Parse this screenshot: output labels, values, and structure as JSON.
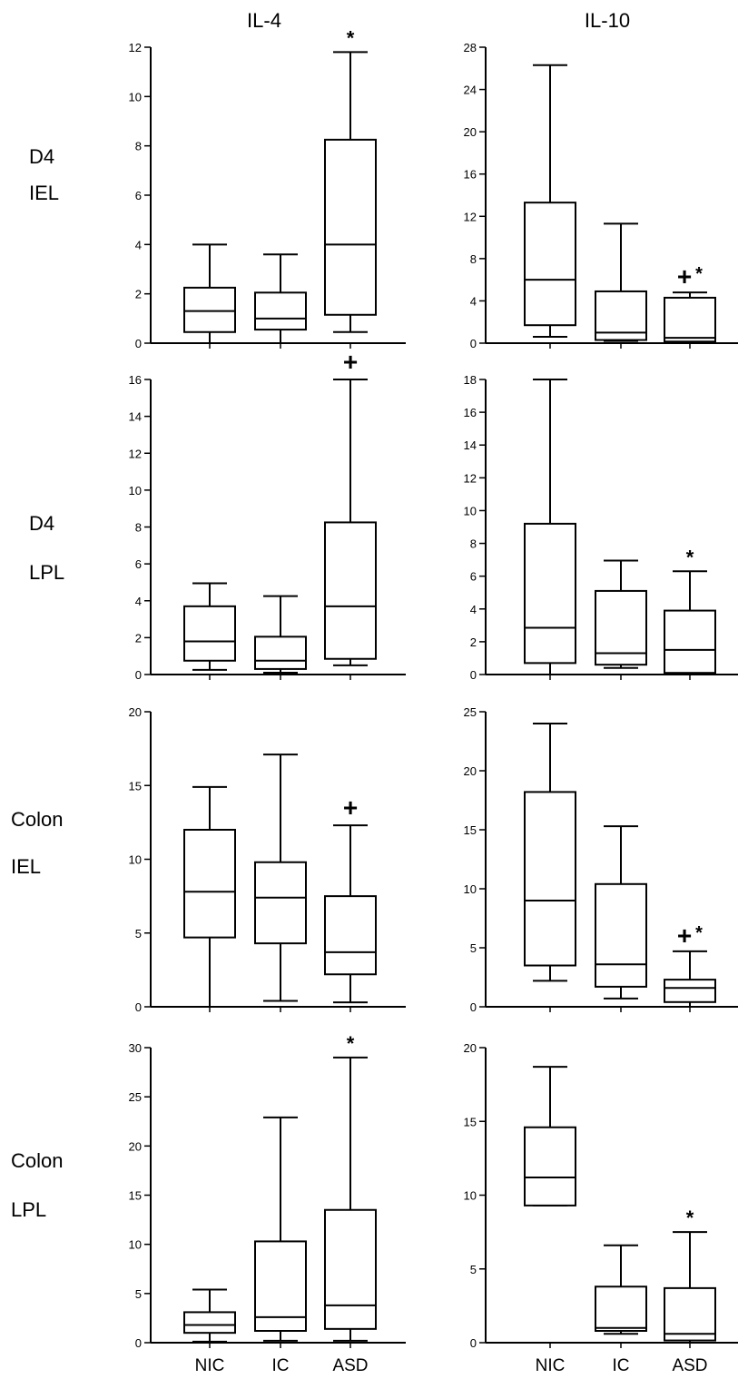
{
  "column_titles": [
    "IL-4",
    "IL-10"
  ],
  "row_labels": [
    {
      "line1": "D4",
      "line2": "IEL"
    },
    {
      "line1": "D4",
      "line2": "LPL"
    },
    {
      "line1": "Colon",
      "line2": "IEL"
    },
    {
      "line1": "Colon",
      "line2": "LPL"
    }
  ],
  "chart_data": [
    {
      "type": "box",
      "column_title": "IL-4",
      "row_label": "D4 IEL",
      "categories": [
        "NIC",
        "IC",
        "ASD"
      ],
      "ylim": [
        0,
        12
      ],
      "yticks": [
        0,
        2,
        4,
        6,
        8,
        10,
        12
      ],
      "boxes": [
        {
          "min": 0,
          "q1": 0.45,
          "median": 1.3,
          "q3": 2.25,
          "max": 4.0
        },
        {
          "min": 0,
          "q1": 0.55,
          "median": 1.0,
          "q3": 2.05,
          "max": 3.6
        },
        {
          "min": 0.45,
          "q1": 1.15,
          "median": 4.0,
          "q3": 8.25,
          "max": 11.8
        }
      ],
      "annotations": [
        {
          "category": "ASD",
          "text": "*"
        }
      ]
    },
    {
      "type": "box",
      "column_title": "IL-10",
      "row_label": "D4 IEL",
      "categories": [
        "NIC",
        "IC",
        "ASD"
      ],
      "ylim": [
        0,
        28
      ],
      "yticks": [
        0,
        4,
        8,
        12,
        16,
        20,
        24,
        28
      ],
      "boxes": [
        {
          "min": 0.6,
          "q1": 1.7,
          "median": 6.0,
          "q3": 13.3,
          "max": 26.3
        },
        {
          "min": 0.2,
          "q1": 0.3,
          "median": 1.0,
          "q3": 4.9,
          "max": 11.3
        },
        {
          "min": 0,
          "q1": 0.15,
          "median": 0.5,
          "q3": 4.3,
          "max": 4.8
        }
      ],
      "annotations": [
        {
          "category": "ASD",
          "text": "+*"
        }
      ]
    },
    {
      "type": "box",
      "column_title": "IL-4",
      "row_label": "D4 LPL",
      "categories": [
        "NIC",
        "IC",
        "ASD"
      ],
      "ylim": [
        0,
        16
      ],
      "yticks": [
        0,
        2,
        4,
        6,
        8,
        10,
        12,
        14,
        16
      ],
      "boxes": [
        {
          "min": 0.25,
          "q1": 0.75,
          "median": 1.8,
          "q3": 3.7,
          "max": 4.95
        },
        {
          "min": 0.1,
          "q1": 0.3,
          "median": 0.75,
          "q3": 2.05,
          "max": 4.25
        },
        {
          "min": 0.5,
          "q1": 0.85,
          "median": 3.7,
          "q3": 8.25,
          "max": 16.0
        }
      ],
      "annotations": [
        {
          "category": "ASD",
          "text": "+"
        }
      ]
    },
    {
      "type": "box",
      "column_title": "IL-10",
      "row_label": "D4 LPL",
      "categories": [
        "NIC",
        "IC",
        "ASD"
      ],
      "ylim": [
        0,
        18
      ],
      "yticks": [
        0,
        2,
        4,
        6,
        8,
        10,
        12,
        14,
        16,
        18
      ],
      "boxes": [
        {
          "min": 0,
          "q1": 0.7,
          "median": 2.85,
          "q3": 9.2,
          "max": 18.0
        },
        {
          "min": 0.4,
          "q1": 0.6,
          "median": 1.3,
          "q3": 5.1,
          "max": 6.95
        },
        {
          "min": 0,
          "q1": 0.1,
          "median": 1.5,
          "q3": 3.9,
          "max": 6.3
        }
      ],
      "annotations": [
        {
          "category": "ASD",
          "text": "*"
        }
      ]
    },
    {
      "type": "box",
      "column_title": "IL-4",
      "row_label": "Colon IEL",
      "categories": [
        "NIC",
        "IC",
        "ASD"
      ],
      "ylim": [
        0,
        20
      ],
      "yticks": [
        0,
        5,
        10,
        15,
        20
      ],
      "boxes": [
        {
          "min": 0,
          "q1": 4.7,
          "median": 7.8,
          "q3": 12.0,
          "max": 14.9
        },
        {
          "min": 0.4,
          "q1": 4.3,
          "median": 7.4,
          "q3": 9.8,
          "max": 17.1
        },
        {
          "min": 0.3,
          "q1": 2.2,
          "median": 3.7,
          "q3": 7.5,
          "max": 12.3
        }
      ],
      "annotations": [
        {
          "category": "ASD",
          "text": "+"
        }
      ]
    },
    {
      "type": "box",
      "column_title": "IL-10",
      "row_label": "Colon IEL",
      "categories": [
        "NIC",
        "IC",
        "ASD"
      ],
      "ylim": [
        0,
        25
      ],
      "yticks": [
        0,
        5,
        10,
        15,
        20,
        25
      ],
      "boxes": [
        {
          "min": 2.2,
          "q1": 3.5,
          "median": 9.0,
          "q3": 18.2,
          "max": 24.0
        },
        {
          "min": 0.7,
          "q1": 1.7,
          "median": 3.6,
          "q3": 10.4,
          "max": 15.3
        },
        {
          "min": 0,
          "q1": 0.4,
          "median": 1.6,
          "q3": 2.3,
          "max": 4.7
        }
      ],
      "annotations": [
        {
          "category": "ASD",
          "text": "+*"
        }
      ]
    },
    {
      "type": "box",
      "column_title": "IL-4",
      "row_label": "Colon LPL",
      "categories": [
        "NIC",
        "IC",
        "ASD"
      ],
      "ylim": [
        0,
        30
      ],
      "yticks": [
        0,
        5,
        10,
        15,
        20,
        25,
        30
      ],
      "boxes": [
        {
          "min": 0.1,
          "q1": 1.0,
          "median": 1.8,
          "q3": 3.1,
          "max": 5.4
        },
        {
          "min": 0.2,
          "q1": 1.2,
          "median": 2.6,
          "q3": 10.3,
          "max": 22.9
        },
        {
          "min": 0.2,
          "q1": 1.4,
          "median": 3.8,
          "q3": 13.5,
          "max": 29.0
        }
      ],
      "annotations": [
        {
          "category": "ASD",
          "text": "*"
        }
      ]
    },
    {
      "type": "box",
      "column_title": "IL-10",
      "row_label": "Colon LPL",
      "categories": [
        "NIC",
        "IC",
        "ASD"
      ],
      "ylim": [
        0,
        20
      ],
      "yticks": [
        0,
        5,
        10,
        15,
        20
      ],
      "boxes": [
        {
          "min": 9.3,
          "q1": 9.3,
          "median": 11.2,
          "q3": 14.6,
          "max": 18.7
        },
        {
          "min": 0.6,
          "q1": 0.8,
          "median": 1.0,
          "q3": 3.8,
          "max": 6.6
        },
        {
          "min": 0,
          "q1": 0.15,
          "median": 0.6,
          "q3": 3.7,
          "max": 7.5
        }
      ],
      "annotations": [
        {
          "category": "ASD",
          "text": "*"
        }
      ]
    }
  ]
}
